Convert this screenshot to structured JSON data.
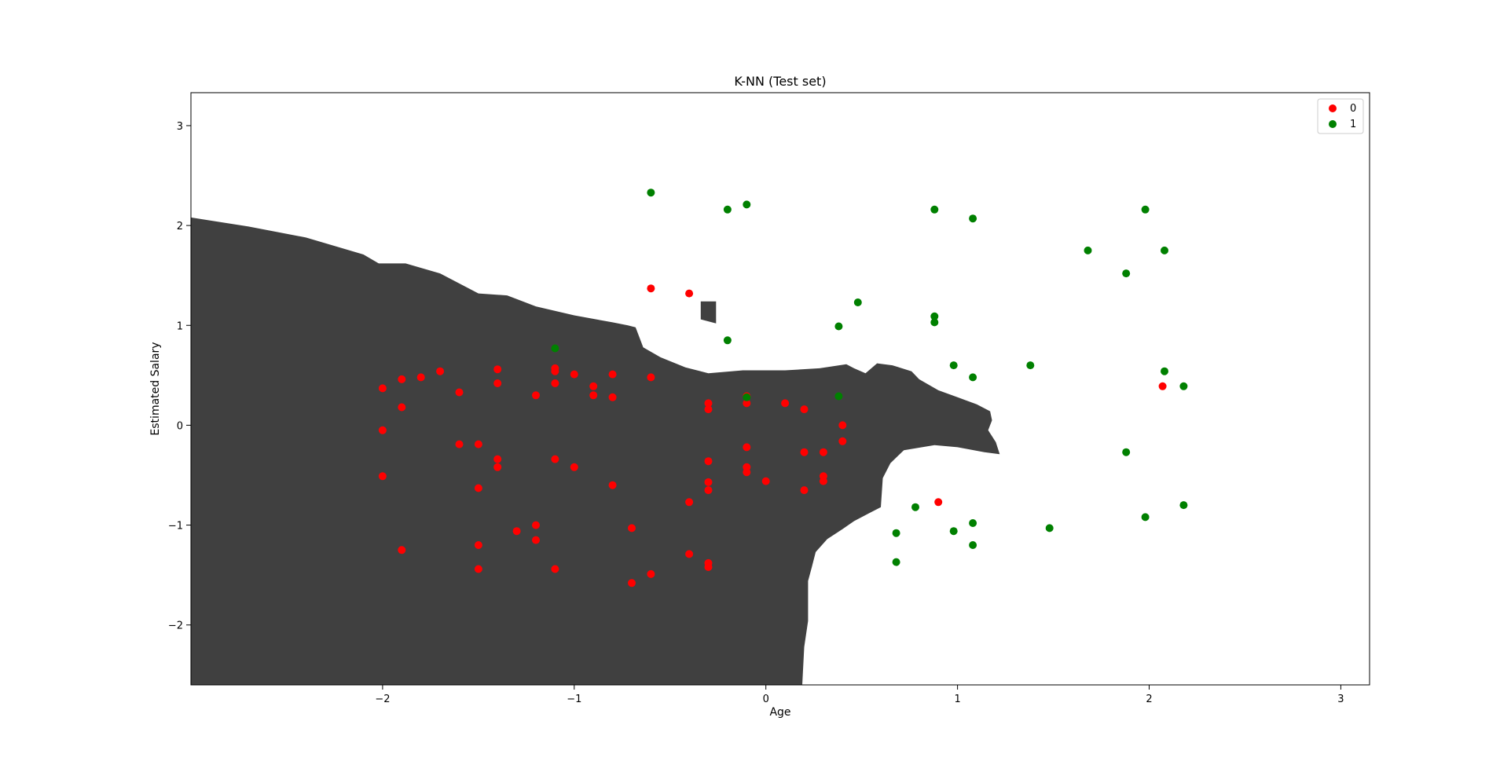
{
  "chart_data": {
    "type": "scatter",
    "title": "K-NN (Test set)",
    "xlabel": "Age",
    "ylabel": "Estimated Salary",
    "xlim": [
      -3.0,
      3.15
    ],
    "ylim": [
      -2.6,
      3.33
    ],
    "xticks": [
      -2,
      -1,
      0,
      1,
      2,
      3
    ],
    "yticks": [
      -2,
      -1,
      0,
      1,
      2,
      3
    ],
    "xtick_labels": [
      "−2",
      "−1",
      "0",
      "1",
      "2",
      "3"
    ],
    "ytick_labels": [
      "−2",
      "−1",
      "0",
      "1",
      "2",
      "3"
    ],
    "grid": false,
    "legend_position": "top-right",
    "colors": {
      "region_0": "#404040",
      "region_1": "#ffffff",
      "class_0": "#ff0000",
      "class_1": "#008000"
    },
    "decision_region": {
      "class": "0",
      "boundary": [
        [
          -3.0,
          2.08
        ],
        [
          -2.7,
          1.99
        ],
        [
          -2.4,
          1.88
        ],
        [
          -2.1,
          1.71
        ],
        [
          -2.02,
          1.62
        ],
        [
          -1.88,
          1.62
        ],
        [
          -1.7,
          1.52
        ],
        [
          -1.5,
          1.32
        ],
        [
          -1.35,
          1.3
        ],
        [
          -1.2,
          1.19
        ],
        [
          -1.0,
          1.1
        ],
        [
          -0.8,
          1.03
        ],
        [
          -0.72,
          1.0
        ],
        [
          -0.68,
          0.98
        ],
        [
          -0.64,
          0.78
        ],
        [
          -0.55,
          0.68
        ],
        [
          -0.42,
          0.58
        ],
        [
          -0.3,
          0.52
        ],
        [
          -0.12,
          0.55
        ],
        [
          0.1,
          0.55
        ],
        [
          0.28,
          0.57
        ],
        [
          0.42,
          0.61
        ],
        [
          0.46,
          0.57
        ],
        [
          0.52,
          0.52
        ],
        [
          0.58,
          0.62
        ],
        [
          0.66,
          0.6
        ],
        [
          0.76,
          0.54
        ],
        [
          0.8,
          0.46
        ],
        [
          0.9,
          0.35
        ],
        [
          1.0,
          0.28
        ],
        [
          1.1,
          0.21
        ],
        [
          1.17,
          0.14
        ],
        [
          1.18,
          0.05
        ],
        [
          1.16,
          -0.05
        ],
        [
          1.2,
          -0.17
        ],
        [
          1.22,
          -0.29
        ],
        [
          1.14,
          -0.27
        ],
        [
          1.0,
          -0.22
        ],
        [
          0.88,
          -0.2
        ],
        [
          0.72,
          -0.25
        ],
        [
          0.65,
          -0.38
        ],
        [
          0.61,
          -0.53
        ],
        [
          0.6,
          -0.82
        ],
        [
          0.54,
          -0.88
        ],
        [
          0.46,
          -0.96
        ],
        [
          0.4,
          -1.04
        ],
        [
          0.32,
          -1.14
        ],
        [
          0.26,
          -1.27
        ],
        [
          0.24,
          -1.42
        ],
        [
          0.22,
          -1.56
        ],
        [
          0.22,
          -1.96
        ],
        [
          0.2,
          -2.22
        ],
        [
          0.19,
          -2.6
        ],
        [
          -3.0,
          -2.6
        ]
      ],
      "islands": [
        [
          [
            -0.34,
            1.24
          ],
          [
            -0.26,
            1.24
          ],
          [
            -0.26,
            1.02
          ],
          [
            -0.34,
            1.06
          ]
        ]
      ]
    },
    "series": [
      {
        "name": "0",
        "color": "#ff0000",
        "points": [
          [
            -2.0,
            0.37
          ],
          [
            -1.9,
            0.46
          ],
          [
            -1.8,
            0.48
          ],
          [
            -1.7,
            0.54
          ],
          [
            -1.9,
            0.18
          ],
          [
            -2.0,
            -0.05
          ],
          [
            -2.0,
            -0.51
          ],
          [
            -1.6,
            0.33
          ],
          [
            -1.4,
            0.56
          ],
          [
            -1.4,
            0.42
          ],
          [
            -1.1,
            0.57
          ],
          [
            -1.1,
            0.54
          ],
          [
            -1.1,
            0.42
          ],
          [
            -1.2,
            0.3
          ],
          [
            -1.0,
            0.51
          ],
          [
            -0.9,
            0.39
          ],
          [
            -0.9,
            0.3
          ],
          [
            -0.8,
            0.51
          ],
          [
            -0.8,
            0.28
          ],
          [
            -0.6,
            0.48
          ],
          [
            -0.6,
            1.37
          ],
          [
            -0.4,
            1.32
          ],
          [
            -1.6,
            -0.19
          ],
          [
            -1.5,
            -0.19
          ],
          [
            -1.4,
            -0.34
          ],
          [
            -1.4,
            -0.42
          ],
          [
            -1.5,
            -0.63
          ],
          [
            -1.1,
            -0.34
          ],
          [
            -1.0,
            -0.42
          ],
          [
            -0.8,
            -0.6
          ],
          [
            -1.9,
            -1.25
          ],
          [
            -1.5,
            -1.2
          ],
          [
            -1.5,
            -1.44
          ],
          [
            -1.3,
            -1.06
          ],
          [
            -1.2,
            -1.0
          ],
          [
            -1.2,
            -1.15
          ],
          [
            -1.1,
            -1.44
          ],
          [
            -0.7,
            -1.03
          ],
          [
            -0.7,
            -1.58
          ],
          [
            -0.6,
            -1.49
          ],
          [
            -0.4,
            -0.77
          ],
          [
            -0.4,
            -1.29
          ],
          [
            -0.3,
            -0.36
          ],
          [
            -0.3,
            -0.57
          ],
          [
            -0.3,
            -0.65
          ],
          [
            -0.3,
            -1.38
          ],
          [
            -0.3,
            -1.42
          ],
          [
            -0.3,
            0.22
          ],
          [
            -0.3,
            0.16
          ],
          [
            -0.1,
            0.29
          ],
          [
            -0.1,
            0.22
          ],
          [
            -0.1,
            -0.22
          ],
          [
            -0.1,
            -0.42
          ],
          [
            -0.1,
            -0.47
          ],
          [
            0.0,
            -0.56
          ],
          [
            0.1,
            0.22
          ],
          [
            0.2,
            0.16
          ],
          [
            0.2,
            -0.27
          ],
          [
            0.2,
            -0.65
          ],
          [
            0.3,
            -0.27
          ],
          [
            0.3,
            -0.51
          ],
          [
            0.3,
            -0.56
          ],
          [
            0.4,
            0.0
          ],
          [
            0.4,
            -0.16
          ],
          [
            0.9,
            -0.77
          ],
          [
            2.07,
            0.39
          ]
        ]
      },
      {
        "name": "1",
        "color": "#008000",
        "points": [
          [
            -0.6,
            2.33
          ],
          [
            -0.2,
            2.16
          ],
          [
            -0.1,
            2.21
          ],
          [
            0.88,
            2.16
          ],
          [
            1.08,
            2.07
          ],
          [
            1.98,
            2.16
          ],
          [
            1.68,
            1.75
          ],
          [
            2.08,
            1.75
          ],
          [
            1.88,
            1.52
          ],
          [
            0.48,
            1.23
          ],
          [
            0.88,
            1.09
          ],
          [
            0.88,
            1.03
          ],
          [
            0.38,
            0.99
          ],
          [
            -0.2,
            0.85
          ],
          [
            -1.1,
            0.77
          ],
          [
            0.98,
            0.6
          ],
          [
            1.38,
            0.6
          ],
          [
            1.08,
            0.48
          ],
          [
            2.08,
            0.54
          ],
          [
            2.18,
            0.39
          ],
          [
            -0.1,
            0.28
          ],
          [
            0.38,
            0.29
          ],
          [
            1.88,
            -0.27
          ],
          [
            0.78,
            -0.82
          ],
          [
            0.68,
            -1.08
          ],
          [
            0.98,
            -1.06
          ],
          [
            1.08,
            -0.98
          ],
          [
            1.48,
            -1.03
          ],
          [
            1.98,
            -0.92
          ],
          [
            2.18,
            -0.8
          ],
          [
            1.08,
            -1.2
          ],
          [
            0.68,
            -1.37
          ]
        ]
      }
    ]
  }
}
